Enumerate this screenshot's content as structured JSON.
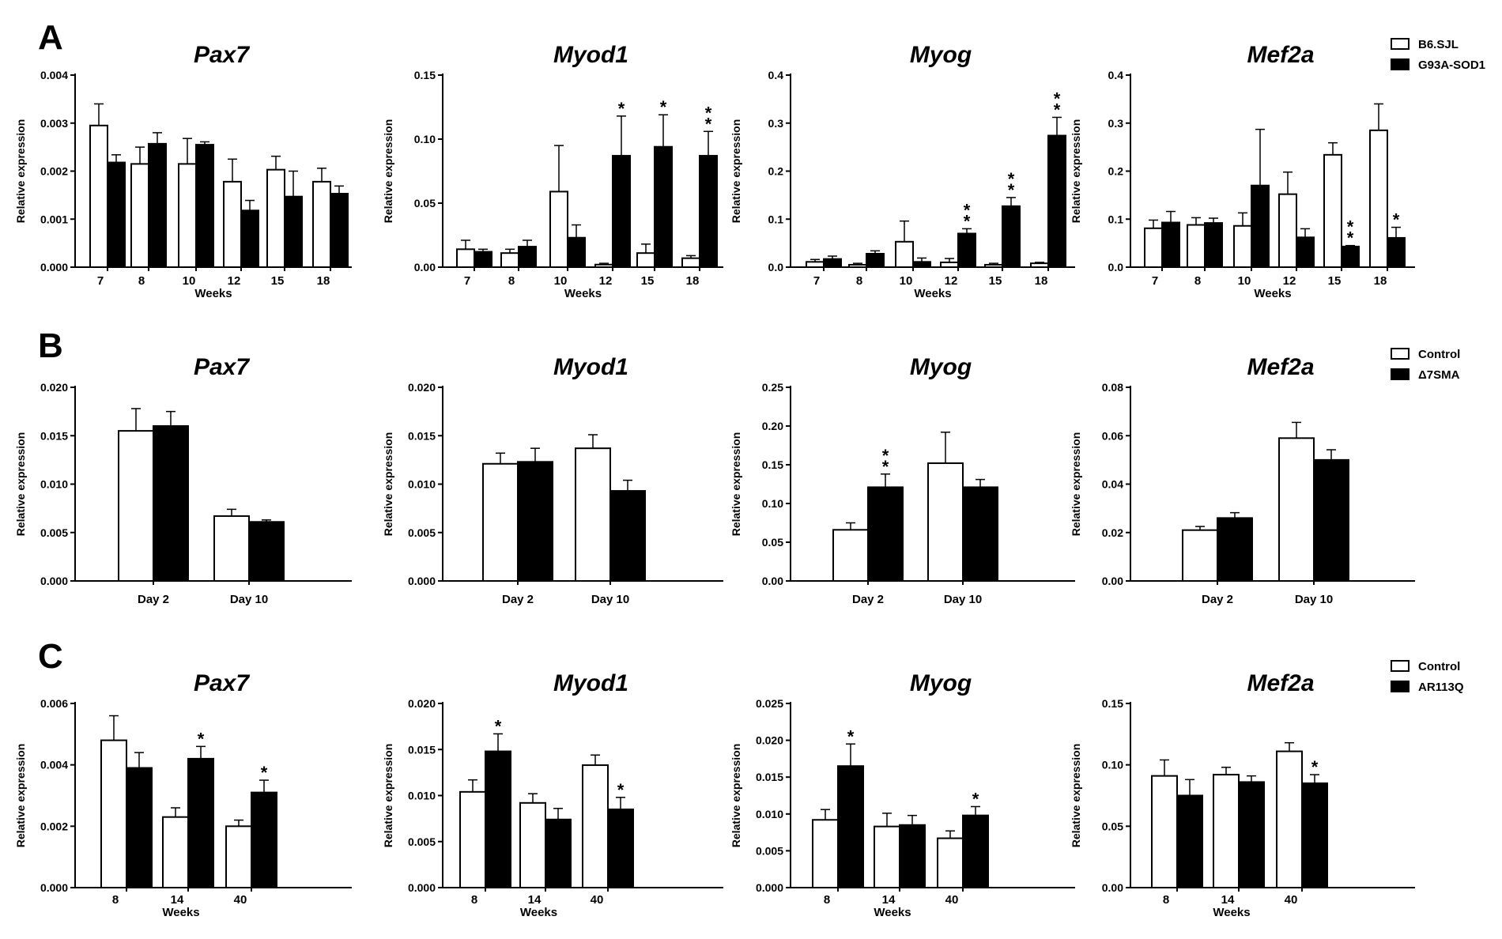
{
  "figure": {
    "background": "#ffffff",
    "control_fill": "#ffffff",
    "mutant_fill": "#000000"
  },
  "panels": [
    {
      "label": "A",
      "legend": [
        "B6.SJL",
        "G93A-SOD1"
      ]
    },
    {
      "label": "B",
      "legend": [
        "Control",
        "Δ7SMA"
      ]
    },
    {
      "label": "C",
      "legend": [
        "Control",
        "AR113Q"
      ]
    }
  ],
  "chart_data": [
    {
      "type": "bar",
      "panel": "A",
      "title": "Pax7",
      "ylabel": "Relative expression",
      "xlabel": "Weeks",
      "categories": [
        "7",
        "8",
        "10",
        "12",
        "15",
        "18"
      ],
      "ylim": [
        0,
        0.004
      ],
      "yticks": [
        "0.000",
        "0.001",
        "0.002",
        "0.003",
        "0.004"
      ],
      "series": [
        {
          "name": "B6.SJL",
          "values": [
            0.00295,
            0.00215,
            0.00215,
            0.00178,
            0.00203,
            0.00178
          ],
          "errors": [
            0.00045,
            0.00035,
            0.00053,
            0.00047,
            0.00028,
            0.00028
          ]
        },
        {
          "name": "G93A-SOD1",
          "values": [
            0.00218,
            0.00257,
            0.00255,
            0.00118,
            0.00147,
            0.00153
          ],
          "errors": [
            0.00016,
            0.00023,
            6e-05,
            0.00021,
            0.00053,
            0.00016
          ]
        }
      ],
      "significance": [
        [
          "",
          ""
        ],
        [
          "",
          ""
        ],
        [
          "",
          ""
        ],
        [
          "",
          ""
        ],
        [
          "",
          ""
        ],
        [
          "",
          ""
        ]
      ]
    },
    {
      "type": "bar",
      "panel": "A",
      "title": "Myod1",
      "ylabel": "Relative expression",
      "xlabel": "Weeks",
      "categories": [
        "7",
        "8",
        "10",
        "12",
        "15",
        "18"
      ],
      "ylim": [
        0,
        0.15
      ],
      "yticks": [
        "0.00",
        "0.05",
        "0.10",
        "0.15"
      ],
      "series": [
        {
          "name": "B6.SJL",
          "values": [
            0.014,
            0.011,
            0.059,
            0.002,
            0.011,
            0.007
          ],
          "errors": [
            0.007,
            0.003,
            0.036,
            0.001,
            0.007,
            0.002
          ]
        },
        {
          "name": "G93A-SOD1",
          "values": [
            0.012,
            0.016,
            0.023,
            0.087,
            0.094,
            0.087
          ],
          "errors": [
            0.002,
            0.005,
            0.01,
            0.031,
            0.025,
            0.019
          ]
        }
      ],
      "significance": [
        [
          "",
          ""
        ],
        [
          "",
          ""
        ],
        [
          "",
          ""
        ],
        [
          "",
          "*"
        ],
        [
          "",
          "*"
        ],
        [
          "",
          "**"
        ]
      ]
    },
    {
      "type": "bar",
      "panel": "A",
      "title": "Myog",
      "ylabel": "Relative expression",
      "xlabel": "Weeks",
      "categories": [
        "7",
        "8",
        "10",
        "12",
        "15",
        "18"
      ],
      "ylim": [
        0,
        0.4
      ],
      "yticks": [
        "0.0",
        "0.1",
        "0.2",
        "0.3",
        "0.4"
      ],
      "series": [
        {
          "name": "B6.SJL",
          "values": [
            0.011,
            0.005,
            0.053,
            0.01,
            0.005,
            0.008
          ],
          "errors": [
            0.005,
            0.003,
            0.043,
            0.008,
            0.003,
            0.002
          ]
        },
        {
          "name": "G93A-SOD1",
          "values": [
            0.017,
            0.028,
            0.011,
            0.07,
            0.127,
            0.274
          ],
          "errors": [
            0.006,
            0.006,
            0.008,
            0.01,
            0.018,
            0.038
          ]
        }
      ],
      "significance": [
        [
          "",
          ""
        ],
        [
          "",
          ""
        ],
        [
          "",
          ""
        ],
        [
          "",
          "**"
        ],
        [
          "",
          "**"
        ],
        [
          "",
          "**"
        ]
      ]
    },
    {
      "type": "bar",
      "panel": "A",
      "title": "Mef2a",
      "ylabel": "Relative expression",
      "xlabel": "Weeks",
      "categories": [
        "7",
        "8",
        "10",
        "12",
        "15",
        "18"
      ],
      "ylim": [
        0,
        0.4
      ],
      "yticks": [
        "0.0",
        "0.1",
        "0.2",
        "0.3",
        "0.4"
      ],
      "series": [
        {
          "name": "B6.SJL",
          "values": [
            0.081,
            0.088,
            0.086,
            0.152,
            0.234,
            0.285
          ],
          "errors": [
            0.017,
            0.015,
            0.027,
            0.046,
            0.025,
            0.055
          ]
        },
        {
          "name": "G93A-SOD1",
          "values": [
            0.093,
            0.092,
            0.17,
            0.062,
            0.043,
            0.061
          ],
          "errors": [
            0.023,
            0.01,
            0.117,
            0.018,
            0.002,
            0.022
          ]
        }
      ],
      "significance": [
        [
          "",
          ""
        ],
        [
          "",
          ""
        ],
        [
          "",
          ""
        ],
        [
          "",
          ""
        ],
        [
          "",
          "**"
        ],
        [
          "",
          "*"
        ]
      ]
    },
    {
      "type": "bar",
      "panel": "B",
      "title": "Pax7",
      "ylabel": "Relative expression",
      "xlabel": "",
      "categories": [
        "Day 2",
        "Day 10"
      ],
      "ylim": [
        0,
        0.02
      ],
      "yticks": [
        "0.000",
        "0.005",
        "0.010",
        "0.015",
        "0.020"
      ],
      "series": [
        {
          "name": "Control",
          "values": [
            0.0155,
            0.0067
          ],
          "errors": [
            0.0023,
            0.0007
          ]
        },
        {
          "name": "Δ7SMA",
          "values": [
            0.016,
            0.0061
          ],
          "errors": [
            0.0015,
            0.0002
          ]
        }
      ],
      "significance": [
        [
          "",
          ""
        ],
        [
          "",
          ""
        ]
      ]
    },
    {
      "type": "bar",
      "panel": "B",
      "title": "Myod1",
      "ylabel": "Relative expression",
      "xlabel": "",
      "categories": [
        "Day 2",
        "Day 10"
      ],
      "ylim": [
        0,
        0.02
      ],
      "yticks": [
        "0.000",
        "0.005",
        "0.010",
        "0.015",
        "0.020"
      ],
      "series": [
        {
          "name": "Control",
          "values": [
            0.0121,
            0.0137
          ],
          "errors": [
            0.0011,
            0.0014
          ]
        },
        {
          "name": "Δ7SMA",
          "values": [
            0.0123,
            0.0093
          ],
          "errors": [
            0.0014,
            0.0011
          ]
        }
      ],
      "significance": [
        [
          "",
          ""
        ],
        [
          "",
          ""
        ]
      ]
    },
    {
      "type": "bar",
      "panel": "B",
      "title": "Myog",
      "ylabel": "Relative expression",
      "xlabel": "",
      "categories": [
        "Day 2",
        "Day 10"
      ],
      "ylim": [
        0,
        0.25
      ],
      "yticks": [
        "0.00",
        "0.05",
        "0.10",
        "0.15",
        "0.20",
        "0.25"
      ],
      "series": [
        {
          "name": "Control",
          "values": [
            0.066,
            0.152
          ],
          "errors": [
            0.009,
            0.04
          ]
        },
        {
          "name": "Δ7SMA",
          "values": [
            0.121,
            0.121
          ],
          "errors": [
            0.017,
            0.01
          ]
        }
      ],
      "significance": [
        [
          "",
          "**"
        ],
        [
          "",
          ""
        ]
      ]
    },
    {
      "type": "bar",
      "panel": "B",
      "title": "Mef2a",
      "ylabel": "Relative expression",
      "xlabel": "",
      "categories": [
        "Day 2",
        "Day 10"
      ],
      "ylim": [
        0,
        0.08
      ],
      "yticks": [
        "0.00",
        "0.02",
        "0.04",
        "0.06",
        "0.08"
      ],
      "series": [
        {
          "name": "Control",
          "values": [
            0.021,
            0.059
          ],
          "errors": [
            0.0015,
            0.0065
          ]
        },
        {
          "name": "Δ7SMA",
          "values": [
            0.026,
            0.05
          ],
          "errors": [
            0.0022,
            0.0042
          ]
        }
      ],
      "significance": [
        [
          "",
          ""
        ],
        [
          "",
          ""
        ]
      ]
    },
    {
      "type": "bar",
      "panel": "C",
      "title": "Pax7",
      "ylabel": "Relative expression",
      "xlabel": "Weeks",
      "categories": [
        "8",
        "14",
        "40"
      ],
      "ylim": [
        0,
        0.006
      ],
      "yticks": [
        "0.000",
        "0.002",
        "0.004",
        "0.006"
      ],
      "series": [
        {
          "name": "Control",
          "values": [
            0.0048,
            0.0023,
            0.002
          ],
          "errors": [
            0.0008,
            0.0003,
            0.0002
          ]
        },
        {
          "name": "AR113Q",
          "values": [
            0.0039,
            0.0042,
            0.0031
          ],
          "errors": [
            0.0005,
            0.0004,
            0.0004
          ]
        }
      ],
      "significance": [
        [
          "",
          ""
        ],
        [
          "",
          "*"
        ],
        [
          "",
          "*"
        ]
      ]
    },
    {
      "type": "bar",
      "panel": "C",
      "title": "Myod1",
      "ylabel": "Relative expression",
      "xlabel": "Weeks",
      "categories": [
        "8",
        "14",
        "40"
      ],
      "ylim": [
        0,
        0.02
      ],
      "yticks": [
        "0.000",
        "0.005",
        "0.010",
        "0.015",
        "0.020"
      ],
      "series": [
        {
          "name": "Control",
          "values": [
            0.0104,
            0.0092,
            0.0133
          ],
          "errors": [
            0.0013,
            0.001,
            0.0011
          ]
        },
        {
          "name": "AR113Q",
          "values": [
            0.0148,
            0.0074,
            0.0085
          ],
          "errors": [
            0.0019,
            0.0012,
            0.0013
          ]
        }
      ],
      "significance": [
        [
          "",
          "*"
        ],
        [
          "",
          ""
        ],
        [
          "",
          "*"
        ]
      ]
    },
    {
      "type": "bar",
      "panel": "C",
      "title": "Myog",
      "ylabel": "Relative expression",
      "xlabel": "Weeks",
      "categories": [
        "8",
        "14",
        "40"
      ],
      "ylim": [
        0,
        0.025
      ],
      "yticks": [
        "0.000",
        "0.005",
        "0.010",
        "0.015",
        "0.020",
        "0.025"
      ],
      "series": [
        {
          "name": "Control",
          "values": [
            0.0092,
            0.0083,
            0.0067
          ],
          "errors": [
            0.0014,
            0.0018,
            0.001
          ]
        },
        {
          "name": "AR113Q",
          "values": [
            0.0165,
            0.0085,
            0.0098
          ],
          "errors": [
            0.003,
            0.0013,
            0.0012
          ]
        }
      ],
      "significance": [
        [
          "",
          "*"
        ],
        [
          "",
          ""
        ],
        [
          "",
          "*"
        ]
      ]
    },
    {
      "type": "bar",
      "panel": "C",
      "title": "Mef2a",
      "ylabel": "Relative expression",
      "xlabel": "Weeks",
      "categories": [
        "8",
        "14",
        "40"
      ],
      "ylim": [
        0,
        0.15
      ],
      "yticks": [
        "0.00",
        "0.05",
        "0.10",
        "0.15"
      ],
      "series": [
        {
          "name": "Control",
          "values": [
            0.091,
            0.092,
            0.111
          ],
          "errors": [
            0.013,
            0.006,
            0.007
          ]
        },
        {
          "name": "AR113Q",
          "values": [
            0.075,
            0.086,
            0.085
          ],
          "errors": [
            0.013,
            0.005,
            0.007
          ]
        }
      ],
      "significance": [
        [
          "",
          ""
        ],
        [
          "",
          ""
        ],
        [
          "",
          "*"
        ]
      ]
    }
  ]
}
